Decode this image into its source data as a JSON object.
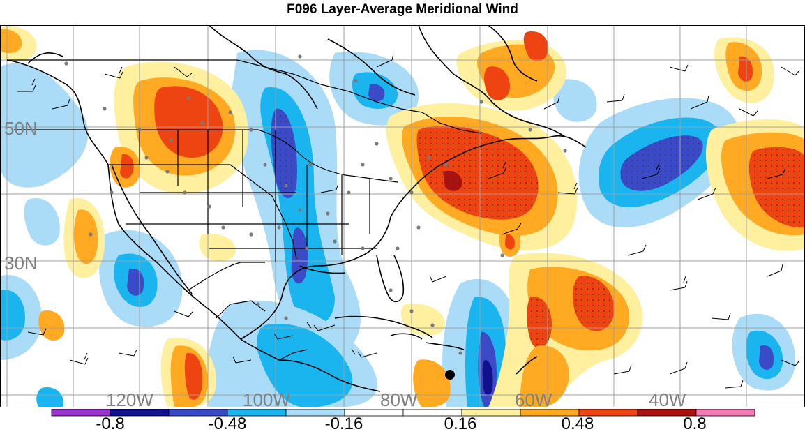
{
  "title": "F096 Layer-Average Meridional Wind",
  "lat_labels": [
    "50N",
    "30N"
  ],
  "lon_labels": [
    "120W",
    "100W",
    "80W",
    "60W",
    "40W"
  ],
  "colorbar": {
    "colors": [
      "#9a33cc",
      "#11118c",
      "#3b4bc8",
      "#1ab4ee",
      "#aadcf8",
      "#ffffff",
      "#ffffff",
      "#fff0a0",
      "#ffaa22",
      "#ee4411",
      "#aa1111",
      "#f47ab4"
    ],
    "tick_labels": [
      "-0.8",
      "-0.48",
      "-0.16",
      "0.16",
      "0.48",
      "0.8"
    ]
  },
  "features": [
    "contour-fill",
    "wind-barbs",
    "observation-dots",
    "coastlines",
    "political-borders"
  ]
}
